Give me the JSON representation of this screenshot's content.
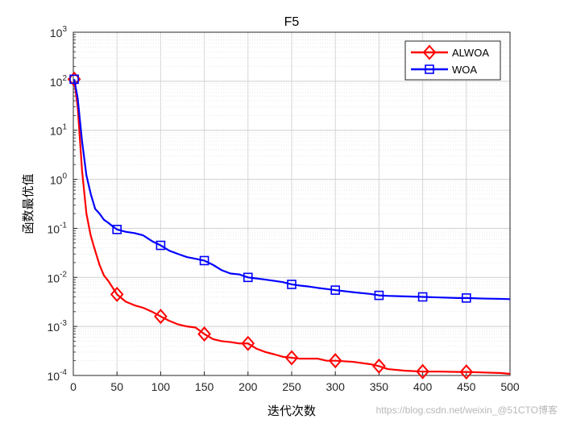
{
  "chart_data": {
    "type": "line",
    "title": "F5",
    "xlabel": "迭代次数",
    "ylabel": "函数最优值",
    "xlim": [
      0,
      500
    ],
    "ylim_log10": [
      -4,
      3
    ],
    "yscale": "log",
    "grid": true,
    "legend_position": "top-right",
    "x_ticks": [
      "0",
      "50",
      "100",
      "150",
      "200",
      "250",
      "300",
      "350",
      "400",
      "450",
      "500"
    ],
    "y_ticks": [
      {
        "base": "10",
        "exp": "-4"
      },
      {
        "base": "10",
        "exp": "-3"
      },
      {
        "base": "10",
        "exp": "-2"
      },
      {
        "base": "10",
        "exp": "-1"
      },
      {
        "base": "10",
        "exp": "0"
      },
      {
        "base": "10",
        "exp": "1"
      },
      {
        "base": "10",
        "exp": "2"
      },
      {
        "base": "10",
        "exp": "3"
      }
    ],
    "series": [
      {
        "name": "ALWOA",
        "color": "#ff0000",
        "marker": "diamond",
        "marker_x": [
          1,
          50,
          100,
          150,
          200,
          250,
          300,
          350,
          400,
          450
        ],
        "x": [
          1,
          5,
          10,
          15,
          20,
          25,
          30,
          35,
          40,
          50,
          60,
          70,
          80,
          90,
          100,
          110,
          120,
          130,
          140,
          150,
          160,
          170,
          180,
          190,
          200,
          210,
          220,
          230,
          240,
          250,
          260,
          270,
          280,
          290,
          300,
          320,
          340,
          350,
          360,
          380,
          400,
          420,
          440,
          450,
          470,
          490,
          500
        ],
        "y": [
          110,
          30,
          1.5,
          0.2,
          0.07,
          0.035,
          0.018,
          0.011,
          0.0085,
          0.0045,
          0.0032,
          0.0027,
          0.0024,
          0.002,
          0.0016,
          0.0013,
          0.0011,
          0.001,
          0.00095,
          0.0007,
          0.00055,
          0.0005,
          0.00048,
          0.00045,
          0.00045,
          0.00035,
          0.0003,
          0.00027,
          0.00024,
          0.00023,
          0.00022,
          0.00022,
          0.00022,
          0.0002,
          0.0002,
          0.00019,
          0.00017,
          0.000155,
          0.000135,
          0.000125,
          0.00012,
          0.00012,
          0.000118,
          0.000118,
          0.000115,
          0.000112,
          0.000108
        ]
      },
      {
        "name": "WOA",
        "color": "#0000ff",
        "marker": "square",
        "marker_x": [
          1,
          50,
          100,
          150,
          200,
          250,
          300,
          350,
          400,
          450
        ],
        "x": [
          1,
          5,
          10,
          15,
          20,
          25,
          30,
          35,
          40,
          45,
          50,
          60,
          70,
          80,
          90,
          100,
          110,
          120,
          130,
          140,
          150,
          160,
          170,
          180,
          190,
          200,
          210,
          220,
          230,
          240,
          250,
          260,
          270,
          280,
          290,
          300,
          320,
          340,
          350,
          360,
          380,
          400,
          420,
          440,
          450,
          470,
          490,
          500
        ],
        "y": [
          110,
          45,
          6,
          1.2,
          0.5,
          0.25,
          0.2,
          0.15,
          0.13,
          0.11,
          0.095,
          0.085,
          0.08,
          0.072,
          0.055,
          0.045,
          0.035,
          0.03,
          0.026,
          0.024,
          0.022,
          0.018,
          0.014,
          0.012,
          0.0115,
          0.01,
          0.0095,
          0.009,
          0.0085,
          0.008,
          0.0072,
          0.0068,
          0.0065,
          0.0061,
          0.0058,
          0.0055,
          0.005,
          0.0046,
          0.0043,
          0.0042,
          0.0041,
          0.004,
          0.0039,
          0.0038,
          0.0038,
          0.0037,
          0.00365,
          0.0036
        ]
      }
    ]
  },
  "watermark": "https://blog.csdn.net/weixin_@51CTO博客"
}
